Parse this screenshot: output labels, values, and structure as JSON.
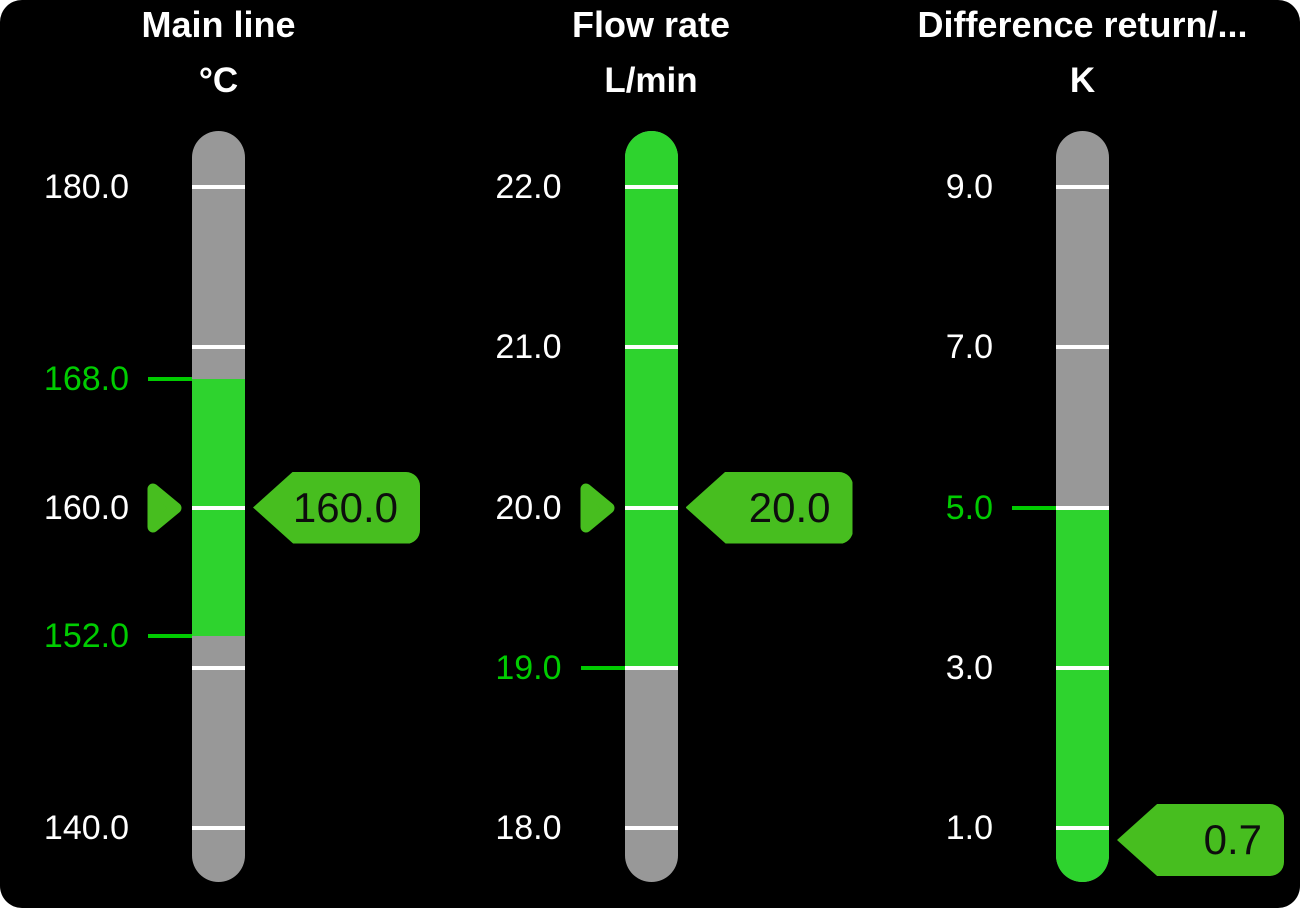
{
  "colors": {
    "page_bg": "#FFFFFF",
    "panel_bg": "#000000",
    "bar_gray": "#989898",
    "bar_green": "#2ED32E",
    "accent_green": "#47BE1F",
    "limit_green": "#00CC00",
    "tick_white": "#FFFFFF",
    "text_white": "#FFFFFF",
    "tag_text": "#0D0D0D"
  },
  "gauges": [
    {
      "name": "main-line",
      "title": "Main line",
      "unit": "°C",
      "scale": {
        "min": 140,
        "max": 180
      },
      "ticks": [
        {
          "value": 180,
          "label": "180.0",
          "label_color": "white"
        },
        {
          "value": 170
        },
        {
          "value": 160,
          "label": "160.0",
          "label_color": "white"
        },
        {
          "value": 150
        },
        {
          "value": 140,
          "label": "140.0",
          "label_color": "white"
        }
      ],
      "limits": [
        {
          "value": 168,
          "label": "168.0"
        },
        {
          "value": 152,
          "label": "152.0"
        }
      ],
      "green_zone": {
        "from": 152,
        "to": 168
      },
      "setpoint": {
        "value": 160
      },
      "value_tag": {
        "text": "160.0",
        "value": 160
      }
    },
    {
      "name": "flow-rate",
      "title": "Flow rate",
      "unit": "L/min",
      "scale": {
        "min": 18,
        "max": 22
      },
      "ticks": [
        {
          "value": 22,
          "label": "22.0",
          "label_color": "white"
        },
        {
          "value": 21,
          "label": "21.0",
          "label_color": "white"
        },
        {
          "value": 20,
          "label": "20.0",
          "label_color": "white"
        },
        {
          "value": 19,
          "label": "19.0",
          "label_color": "green",
          "connector": true
        },
        {
          "value": 18,
          "label": "18.0",
          "label_color": "white"
        }
      ],
      "limits": [],
      "green_zone": {
        "from": 19,
        "to": null
      },
      "setpoint": {
        "value": 20
      },
      "value_tag": {
        "text": "20.0",
        "value": 20
      }
    },
    {
      "name": "difference-return",
      "title": "Difference return/...",
      "unit": "K",
      "scale": {
        "min": 1,
        "max": 9
      },
      "ticks": [
        {
          "value": 9,
          "label": "9.0",
          "label_color": "white"
        },
        {
          "value": 7,
          "label": "7.0",
          "label_color": "white"
        },
        {
          "value": 5,
          "label": "5.0",
          "label_color": "green",
          "connector": true
        },
        {
          "value": 3,
          "label": "3.0",
          "label_color": "white"
        },
        {
          "value": 1,
          "label": "1.0",
          "label_color": "white"
        }
      ],
      "limits": [],
      "green_zone": {
        "from": null,
        "to": 5
      },
      "setpoint": null,
      "value_tag": {
        "text": "0.7",
        "value": 0.7
      }
    }
  ]
}
